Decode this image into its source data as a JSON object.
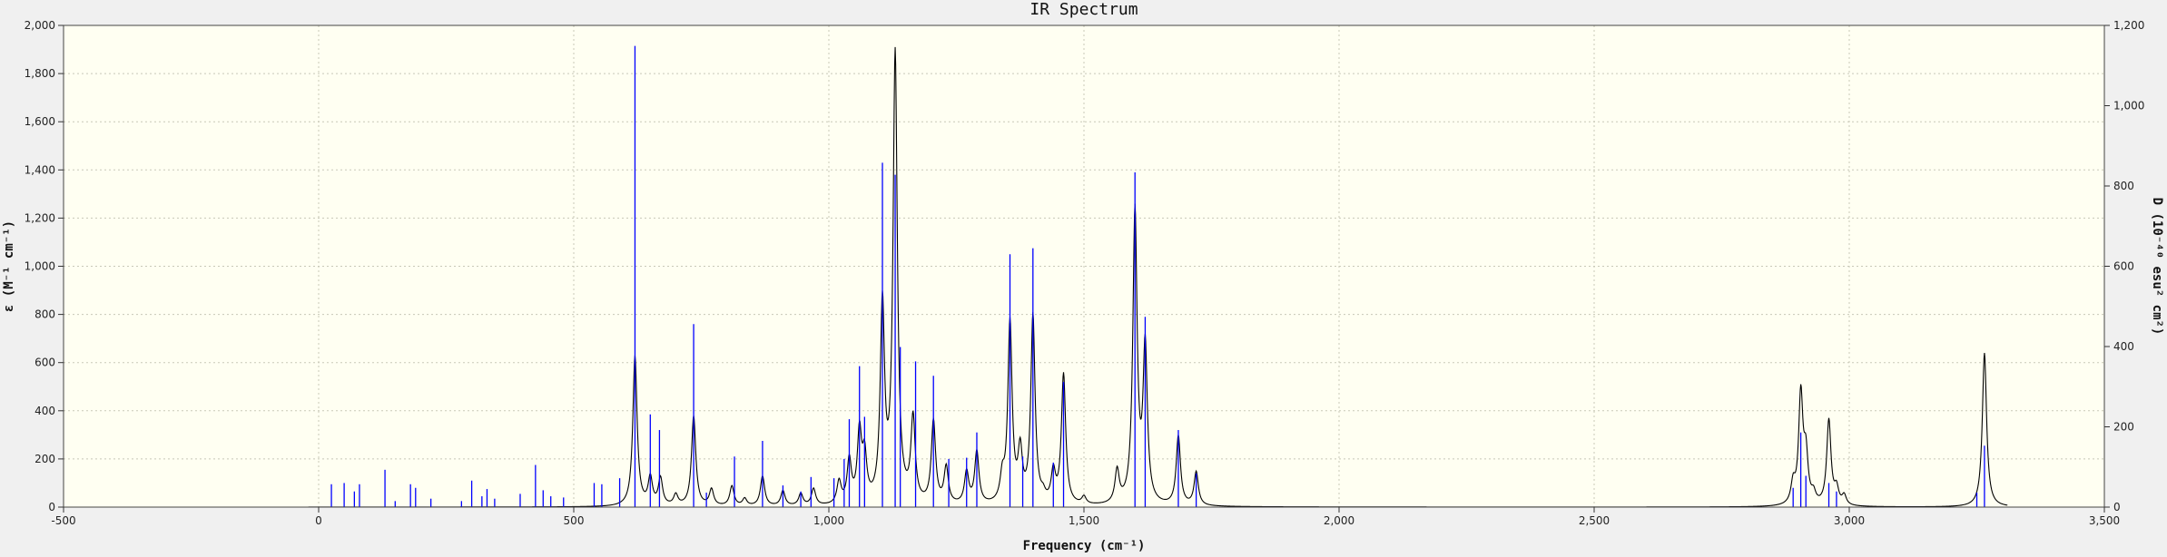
{
  "chart_data": {
    "type": "line",
    "title": "IR Spectrum",
    "xlabel": "Frequency (cm⁻¹)",
    "ylabel": "ε (M⁻¹ cm⁻¹)",
    "y2label": "D (10⁻⁴⁰ esu² cm²)",
    "xlim": [
      -500,
      3500
    ],
    "ylim": [
      0,
      2000
    ],
    "y2lim": [
      0,
      1200
    ],
    "xticks": [
      -500,
      0,
      500,
      1000,
      1500,
      2000,
      2500,
      3000,
      3500
    ],
    "xtick_labels": [
      "-500",
      "0",
      "500",
      "1,000",
      "1,500",
      "2,000",
      "2,500",
      "3,000",
      "3,500"
    ],
    "yticks": [
      0,
      200,
      400,
      600,
      800,
      1000,
      1200,
      1400,
      1600,
      1800,
      2000
    ],
    "ytick_labels": [
      "0",
      "200",
      "400",
      "600",
      "800",
      "1,000",
      "1,200",
      "1,400",
      "1,600",
      "1,800",
      "2,000"
    ],
    "y2ticks": [
      0,
      200,
      400,
      600,
      800,
      1000,
      1200
    ],
    "y2tick_labels": [
      "0",
      "200",
      "400",
      "600",
      "800",
      "1,000",
      "1,200"
    ],
    "grid": true,
    "background": "#fffff2",
    "series": [
      {
        "kind": "spectrum",
        "color": "#000000",
        "peaks": [
          {
            "x": 620,
            "y": 630
          },
          {
            "x": 650,
            "y": 140
          },
          {
            "x": 670,
            "y": 130
          },
          {
            "x": 700,
            "y": 60
          },
          {
            "x": 735,
            "y": 380
          },
          {
            "x": 770,
            "y": 80
          },
          {
            "x": 810,
            "y": 90
          },
          {
            "x": 835,
            "y": 40
          },
          {
            "x": 870,
            "y": 130
          },
          {
            "x": 910,
            "y": 70
          },
          {
            "x": 945,
            "y": 60
          },
          {
            "x": 970,
            "y": 80
          },
          {
            "x": 1020,
            "y": 120
          },
          {
            "x": 1040,
            "y": 220
          },
          {
            "x": 1060,
            "y": 360
          },
          {
            "x": 1070,
            "y": 280
          },
          {
            "x": 1105,
            "y": 900
          },
          {
            "x": 1130,
            "y": 1910
          },
          {
            "x": 1165,
            "y": 400
          },
          {
            "x": 1205,
            "y": 370
          },
          {
            "x": 1230,
            "y": 180
          },
          {
            "x": 1270,
            "y": 160
          },
          {
            "x": 1290,
            "y": 240
          },
          {
            "x": 1340,
            "y": 190
          },
          {
            "x": 1355,
            "y": 790
          },
          {
            "x": 1375,
            "y": 290
          },
          {
            "x": 1400,
            "y": 810
          },
          {
            "x": 1420,
            "y": 100
          },
          {
            "x": 1440,
            "y": 180
          },
          {
            "x": 1460,
            "y": 560
          },
          {
            "x": 1500,
            "y": 50
          },
          {
            "x": 1565,
            "y": 170
          },
          {
            "x": 1600,
            "y": 1260
          },
          {
            "x": 1620,
            "y": 720
          },
          {
            "x": 1685,
            "y": 300
          },
          {
            "x": 1720,
            "y": 150
          },
          {
            "x": 2890,
            "y": 140
          },
          {
            "x": 2905,
            "y": 510
          },
          {
            "x": 2915,
            "y": 300
          },
          {
            "x": 2930,
            "y": 90
          },
          {
            "x": 2960,
            "y": 370
          },
          {
            "x": 2975,
            "y": 110
          },
          {
            "x": 2990,
            "y": 60
          },
          {
            "x": 3250,
            "y": 50
          },
          {
            "x": 3265,
            "y": 640
          }
        ]
      },
      {
        "kind": "sticks",
        "color": "#0000ff",
        "sticks": [
          {
            "x": 25,
            "y": 95
          },
          {
            "x": 50,
            "y": 100
          },
          {
            "x": 70,
            "y": 65
          },
          {
            "x": 80,
            "y": 95
          },
          {
            "x": 130,
            "y": 155
          },
          {
            "x": 150,
            "y": 25
          },
          {
            "x": 180,
            "y": 95
          },
          {
            "x": 190,
            "y": 80
          },
          {
            "x": 220,
            "y": 35
          },
          {
            "x": 280,
            "y": 25
          },
          {
            "x": 300,
            "y": 110
          },
          {
            "x": 320,
            "y": 45
          },
          {
            "x": 330,
            "y": 75
          },
          {
            "x": 345,
            "y": 35
          },
          {
            "x": 395,
            "y": 55
          },
          {
            "x": 425,
            "y": 175
          },
          {
            "x": 440,
            "y": 70
          },
          {
            "x": 455,
            "y": 45
          },
          {
            "x": 480,
            "y": 40
          },
          {
            "x": 540,
            "y": 100
          },
          {
            "x": 555,
            "y": 95
          },
          {
            "x": 590,
            "y": 120
          },
          {
            "x": 620,
            "y": 1915
          },
          {
            "x": 650,
            "y": 385
          },
          {
            "x": 668,
            "y": 320
          },
          {
            "x": 735,
            "y": 760
          },
          {
            "x": 760,
            "y": 60
          },
          {
            "x": 815,
            "y": 210
          },
          {
            "x": 870,
            "y": 275
          },
          {
            "x": 910,
            "y": 90
          },
          {
            "x": 945,
            "y": 65
          },
          {
            "x": 965,
            "y": 125
          },
          {
            "x": 1010,
            "y": 120
          },
          {
            "x": 1030,
            "y": 200
          },
          {
            "x": 1040,
            "y": 365
          },
          {
            "x": 1060,
            "y": 585
          },
          {
            "x": 1070,
            "y": 375
          },
          {
            "x": 1105,
            "y": 1430
          },
          {
            "x": 1130,
            "y": 1380
          },
          {
            "x": 1140,
            "y": 665
          },
          {
            "x": 1170,
            "y": 605
          },
          {
            "x": 1205,
            "y": 545
          },
          {
            "x": 1235,
            "y": 200
          },
          {
            "x": 1270,
            "y": 205
          },
          {
            "x": 1290,
            "y": 310
          },
          {
            "x": 1355,
            "y": 1050
          },
          {
            "x": 1380,
            "y": 210
          },
          {
            "x": 1400,
            "y": 1075
          },
          {
            "x": 1440,
            "y": 185
          },
          {
            "x": 1460,
            "y": 520
          },
          {
            "x": 1600,
            "y": 1390
          },
          {
            "x": 1620,
            "y": 790
          },
          {
            "x": 1685,
            "y": 320
          },
          {
            "x": 1720,
            "y": 140
          },
          {
            "x": 2890,
            "y": 80
          },
          {
            "x": 2905,
            "y": 310
          },
          {
            "x": 2915,
            "y": 130
          },
          {
            "x": 2960,
            "y": 100
          },
          {
            "x": 2975,
            "y": 65
          },
          {
            "x": 3250,
            "y": 60
          },
          {
            "x": 3265,
            "y": 255
          }
        ]
      }
    ]
  }
}
